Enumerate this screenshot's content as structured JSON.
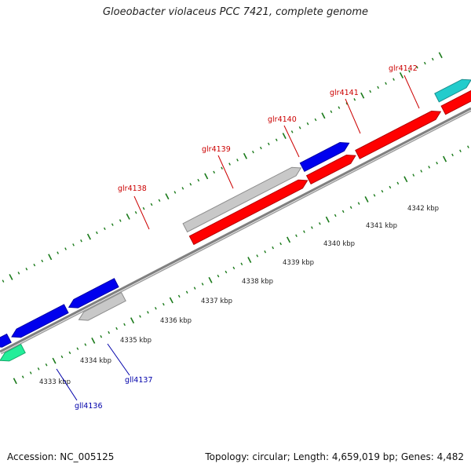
{
  "title": "Gloeobacter violaceus PCC 7421, complete genome",
  "footer": {
    "accession": "Accession: NC_005125",
    "summary": "Topology: circular; Length: 4,659,019 bp; Genes: 4,482"
  },
  "colors": {
    "forward_label": "#cc0000",
    "reverse_label": "#0000aa",
    "red": "#ff0000",
    "blue": "#0000ee",
    "gray": "#c8c8c8",
    "cyan": "#22cccc",
    "teal": "#22ee99",
    "backbone": "#808080",
    "ticks": "#1a7a1a"
  },
  "kbp_labels": [
    "4333 kbp",
    "4334 kbp",
    "4335 kbp",
    "4336 kbp",
    "4337 kbp",
    "4338 kbp",
    "4339 kbp",
    "4340 kbp",
    "4341 kbp",
    "4342 kbp"
  ],
  "genes_forward": [
    {
      "label": "glr4138",
      "color": "red"
    },
    {
      "label": "glr4139",
      "color": "red"
    },
    {
      "label": "glr4140",
      "color": "red"
    },
    {
      "label": "glr4141",
      "color": "red"
    },
    {
      "label": "glr4142",
      "color": "red"
    }
  ],
  "genes_reverse": [
    {
      "label": "gll4136",
      "color": "blue"
    },
    {
      "label": "gll4137",
      "color": "gray"
    }
  ]
}
